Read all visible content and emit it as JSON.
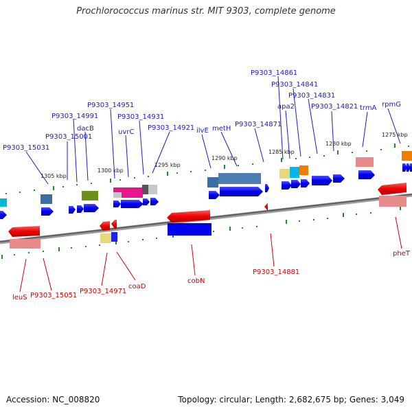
{
  "title": "Prochlorococcus marinus str. MIT 9303, complete genome",
  "footer": {
    "accession": "Accession: NC_008820",
    "summary": "Topology: circular; Length: 2,682,675 bp; Genes: 3,049"
  },
  "colors": {
    "forward_label": "#1a1acc",
    "reverse_label": "#cc0000",
    "tick": "#1e8c1e",
    "backbone": "#777777"
  },
  "ticks": [
    "1305 kbp",
    "1300 kbp",
    "1295 kbp",
    "1290 kbp",
    "1285 kbp",
    "1280 kbp",
    "1275 kbp"
  ],
  "forward_labels": [
    "P9303_15031",
    "P9303_15001",
    "P9303_14991",
    "dacB",
    "P9303_14951",
    "uvrC",
    "P9303_14931",
    "P9303_14921",
    "ilvE",
    "metH",
    "P9303_14871",
    "P9303_14861",
    "apa2",
    "P9303_14841",
    "P9303_14831",
    "P9303_14821",
    "trmA",
    "rpmG"
  ],
  "reverse_labels": [
    "leuS",
    "P9303_15051",
    "P9303_14971",
    "coaD",
    "cobN",
    "P9303_14881",
    "pheT"
  ]
}
